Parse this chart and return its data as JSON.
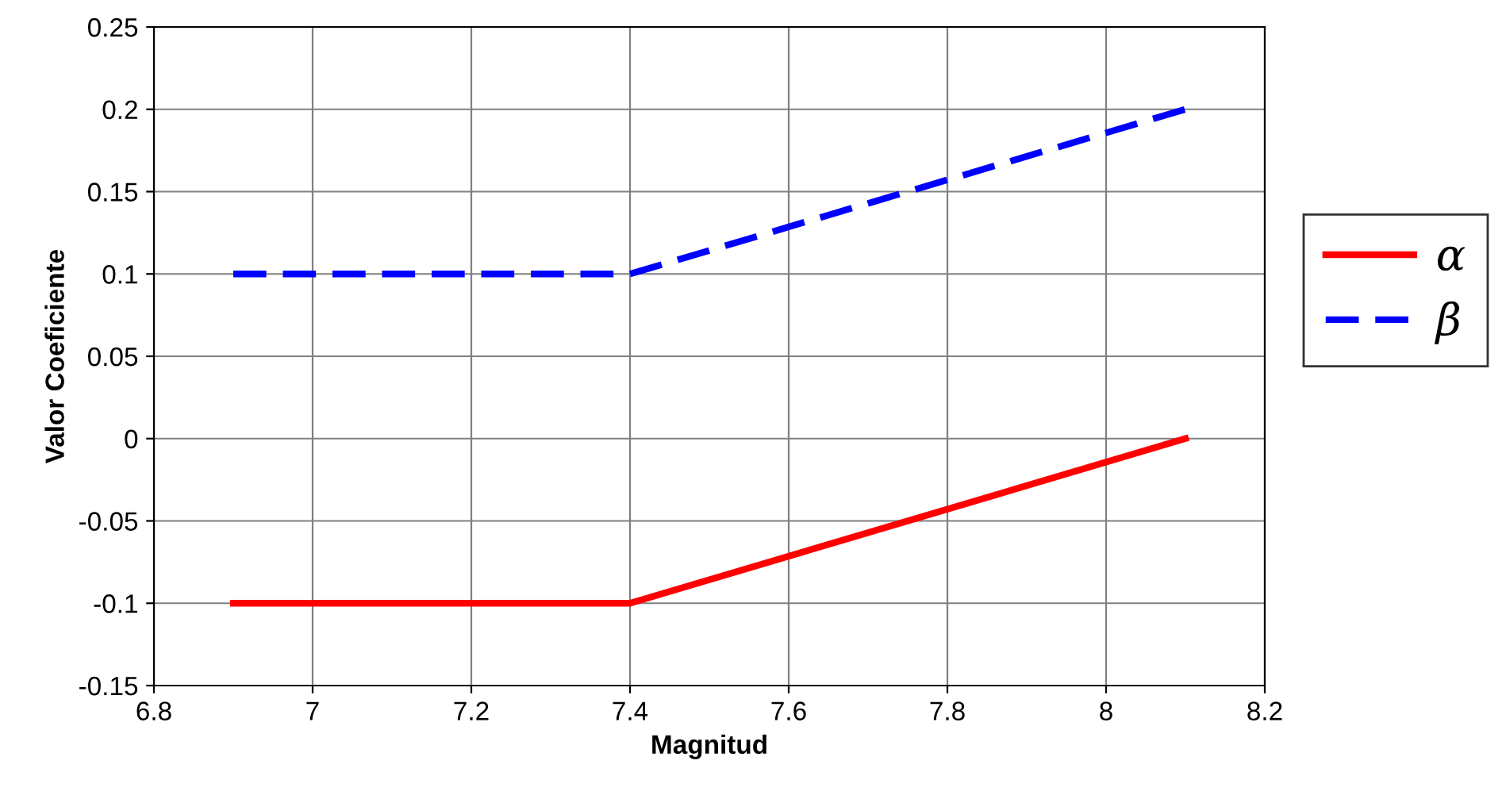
{
  "chart_data": {
    "type": "line",
    "xlabel": "Magnitud",
    "ylabel": "Valor Coeficiente",
    "xlim": [
      6.8,
      8.2
    ],
    "xticks": [
      6.8,
      7,
      7.2,
      7.4,
      7.6,
      7.8,
      8,
      8.2
    ],
    "ylim": [
      -0.15,
      0.25
    ],
    "yticks": [
      -0.15,
      -0.1,
      -0.05,
      0,
      0.05,
      0.1,
      0.15,
      0.2,
      0.25
    ],
    "grid": true,
    "legend": "right",
    "marker": "none",
    "series": [
      {
        "name": "α",
        "color": "#ff0000",
        "line_style": "solid",
        "x": [
          6.9,
          7.4,
          8.1
        ],
        "values": [
          -0.1,
          -0.1,
          0
        ]
      },
      {
        "name": "β",
        "color": "#0000ff",
        "line_style": "dashed",
        "x": [
          6.9,
          7.4,
          8.1
        ],
        "values": [
          0.1,
          0.1,
          0.2
        ]
      }
    ]
  }
}
